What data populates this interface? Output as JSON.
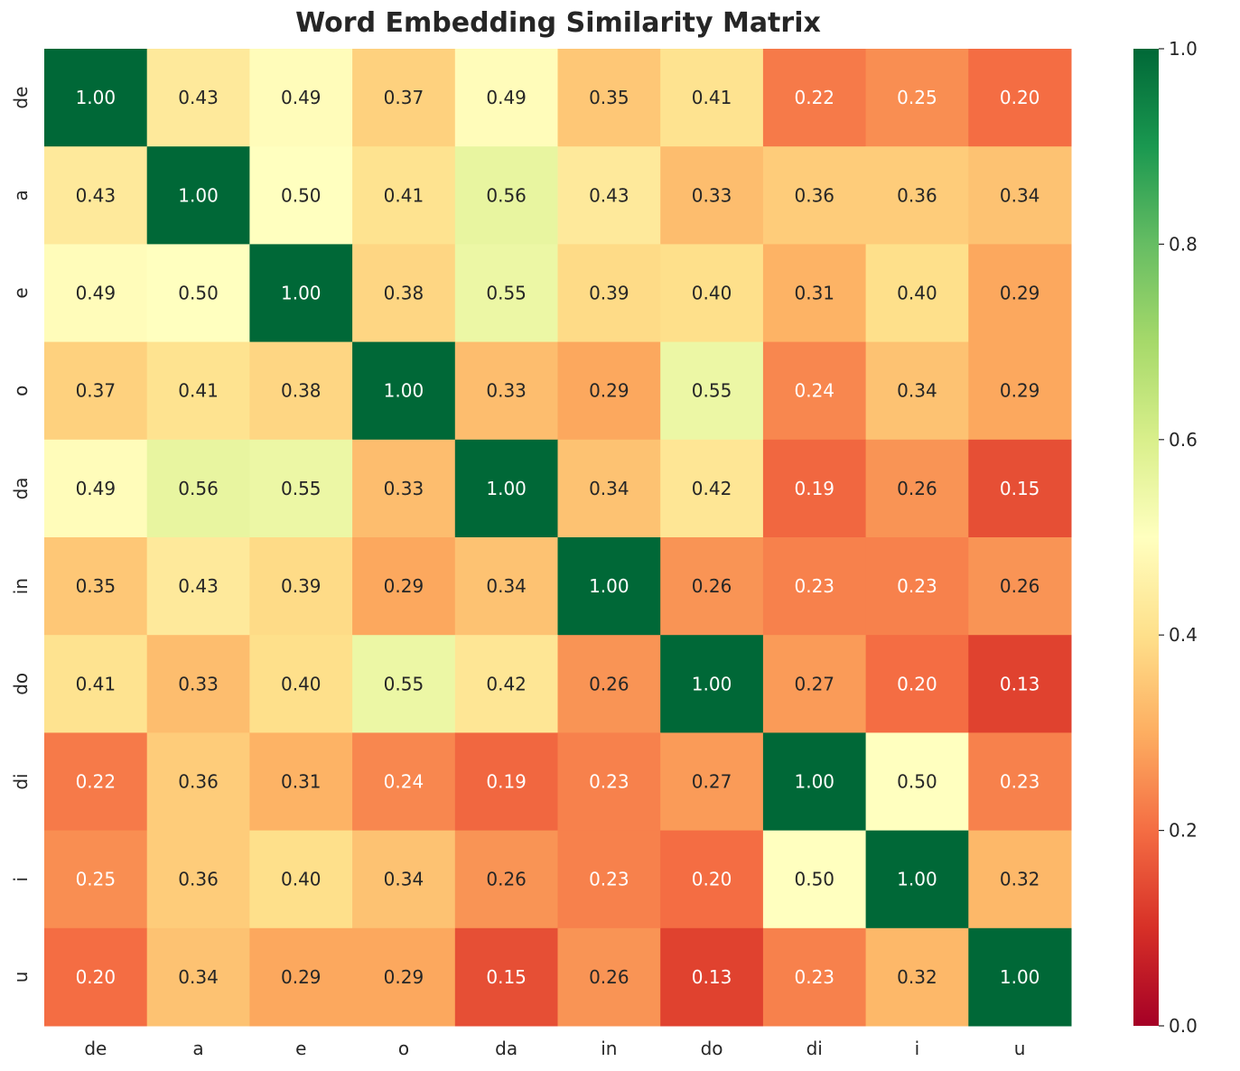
{
  "chart_data": {
    "type": "heatmap",
    "title": "Word Embedding Similarity Matrix",
    "row_labels": [
      "de",
      "a",
      "e",
      "o",
      "da",
      "in",
      "do",
      "di",
      "i",
      "u"
    ],
    "col_labels": [
      "de",
      "a",
      "e",
      "o",
      "da",
      "in",
      "do",
      "di",
      "i",
      "u"
    ],
    "values": [
      [
        1.0,
        0.43,
        0.49,
        0.37,
        0.49,
        0.35,
        0.41,
        0.22,
        0.25,
        0.2
      ],
      [
        0.43,
        1.0,
        0.5,
        0.41,
        0.56,
        0.43,
        0.33,
        0.36,
        0.36,
        0.34
      ],
      [
        0.49,
        0.5,
        1.0,
        0.38,
        0.55,
        0.39,
        0.4,
        0.31,
        0.4,
        0.29
      ],
      [
        0.37,
        0.41,
        0.38,
        1.0,
        0.33,
        0.29,
        0.55,
        0.24,
        0.34,
        0.29
      ],
      [
        0.49,
        0.56,
        0.55,
        0.33,
        1.0,
        0.34,
        0.42,
        0.19,
        0.26,
        0.15
      ],
      [
        0.35,
        0.43,
        0.39,
        0.29,
        0.34,
        1.0,
        0.26,
        0.23,
        0.23,
        0.26
      ],
      [
        0.41,
        0.33,
        0.4,
        0.55,
        0.42,
        0.26,
        1.0,
        0.27,
        0.2,
        0.13
      ],
      [
        0.22,
        0.36,
        0.31,
        0.24,
        0.19,
        0.23,
        0.27,
        1.0,
        0.5,
        0.23
      ],
      [
        0.25,
        0.36,
        0.4,
        0.34,
        0.26,
        0.23,
        0.2,
        0.5,
        1.0,
        0.32
      ],
      [
        0.2,
        0.34,
        0.29,
        0.29,
        0.15,
        0.26,
        0.13,
        0.23,
        0.32,
        1.0
      ]
    ],
    "colormap": "RdYlGn",
    "colormap_stops": [
      "#a50026",
      "#d73027",
      "#f46d43",
      "#fdae61",
      "#fee08b",
      "#ffffbf",
      "#d9ef8b",
      "#a6d96a",
      "#66bd63",
      "#1a9850",
      "#006837"
    ],
    "vmin": 0.0,
    "vmax": 1.0,
    "colorbar_ticks": [
      "0.0",
      "0.2",
      "0.4",
      "0.6",
      "0.8",
      "1.0"
    ],
    "annotation_format": "2 decimals"
  }
}
